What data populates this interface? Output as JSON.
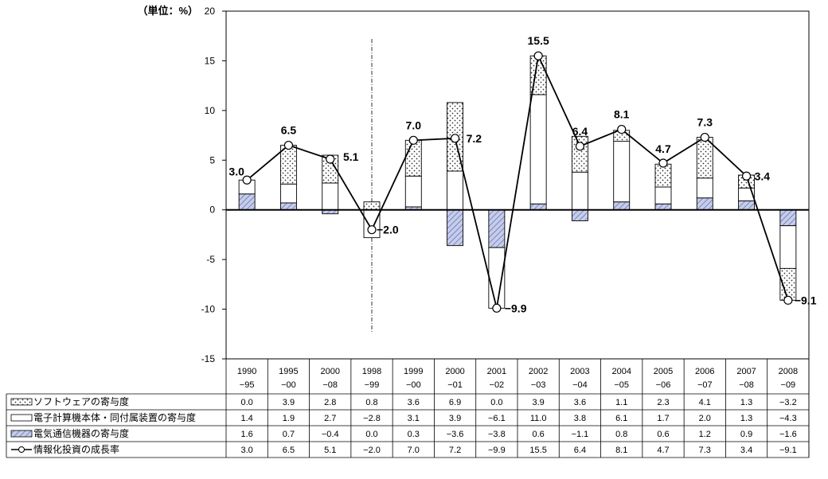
{
  "chart_data": {
    "type": "bar",
    "unit_label": "（単位：%）",
    "ylim": [
      -15,
      20
    ],
    "yticks": [
      "20",
      "15",
      "10",
      "5",
      "0",
      "-5",
      "-10",
      "-15"
    ],
    "categories": [
      {
        "top": "1990",
        "bottom": "−95"
      },
      {
        "top": "1995",
        "bottom": "−00"
      },
      {
        "top": "2000",
        "bottom": "−08"
      },
      {
        "top": "1998",
        "bottom": "−99"
      },
      {
        "top": "1999",
        "bottom": "−00"
      },
      {
        "top": "2000",
        "bottom": "−01"
      },
      {
        "top": "2001",
        "bottom": "−02"
      },
      {
        "top": "2002",
        "bottom": "−03"
      },
      {
        "top": "2003",
        "bottom": "−04"
      },
      {
        "top": "2004",
        "bottom": "−05"
      },
      {
        "top": "2005",
        "bottom": "−06"
      },
      {
        "top": "2006",
        "bottom": "−07"
      },
      {
        "top": "2007",
        "bottom": "−08"
      },
      {
        "top": "2008",
        "bottom": "−09"
      }
    ],
    "series": [
      {
        "name": "ソフトウェアの寄与度",
        "values": [
          0.0,
          3.9,
          2.8,
          0.8,
          3.6,
          6.9,
          0.0,
          3.9,
          3.6,
          1.1,
          2.3,
          4.1,
          1.3,
          -3.2
        ],
        "labels": [
          "0.0",
          "3.9",
          "2.8",
          "0.8",
          "3.6",
          "6.9",
          "0.0",
          "3.9",
          "3.6",
          "1.1",
          "2.3",
          "4.1",
          "1.3",
          "−3.2"
        ]
      },
      {
        "name": "電子計算機本体・同付属装置の寄与度",
        "values": [
          1.4,
          1.9,
          2.7,
          -2.8,
          3.1,
          3.9,
          -6.1,
          11.0,
          3.8,
          6.1,
          1.7,
          2.0,
          1.3,
          -4.3
        ],
        "labels": [
          "1.4",
          "1.9",
          "2.7",
          "−2.8",
          "3.1",
          "3.9",
          "−6.1",
          "11.0",
          "3.8",
          "6.1",
          "1.7",
          "2.0",
          "1.3",
          "−4.3"
        ]
      },
      {
        "name": "電気通信機器の寄与度",
        "values": [
          1.6,
          0.7,
          -0.4,
          0.0,
          0.3,
          -3.6,
          -3.8,
          0.6,
          -1.1,
          0.8,
          0.6,
          1.2,
          0.9,
          -1.6
        ],
        "labels": [
          "1.6",
          "0.7",
          "−0.4",
          "0.0",
          "0.3",
          "−3.6",
          "−3.8",
          "0.6",
          "−1.1",
          "0.8",
          "0.6",
          "1.2",
          "0.9",
          "−1.6"
        ]
      },
      {
        "name": "情報化投資の成長率",
        "values": [
          3.0,
          6.5,
          5.1,
          -2.0,
          7.0,
          7.2,
          -9.9,
          15.5,
          6.4,
          8.1,
          4.7,
          7.3,
          3.4,
          -9.1
        ],
        "labels": [
          "3.0",
          "6.5",
          "5.1",
          "−2.0",
          "7.0",
          "7.2",
          "−9.9",
          "15.5",
          "6.4",
          "8.1",
          "4.7",
          "7.3",
          "3.4",
          "−9.1"
        ]
      }
    ],
    "point_labels": [
      "3.0",
      "6.5",
      "5.1",
      "−2.0",
      "7.0",
      "7.2",
      "−9.9",
      "15.5",
      "6.4",
      "8.1",
      "4.7",
      "7.3",
      "3.4",
      "−9.1"
    ]
  }
}
